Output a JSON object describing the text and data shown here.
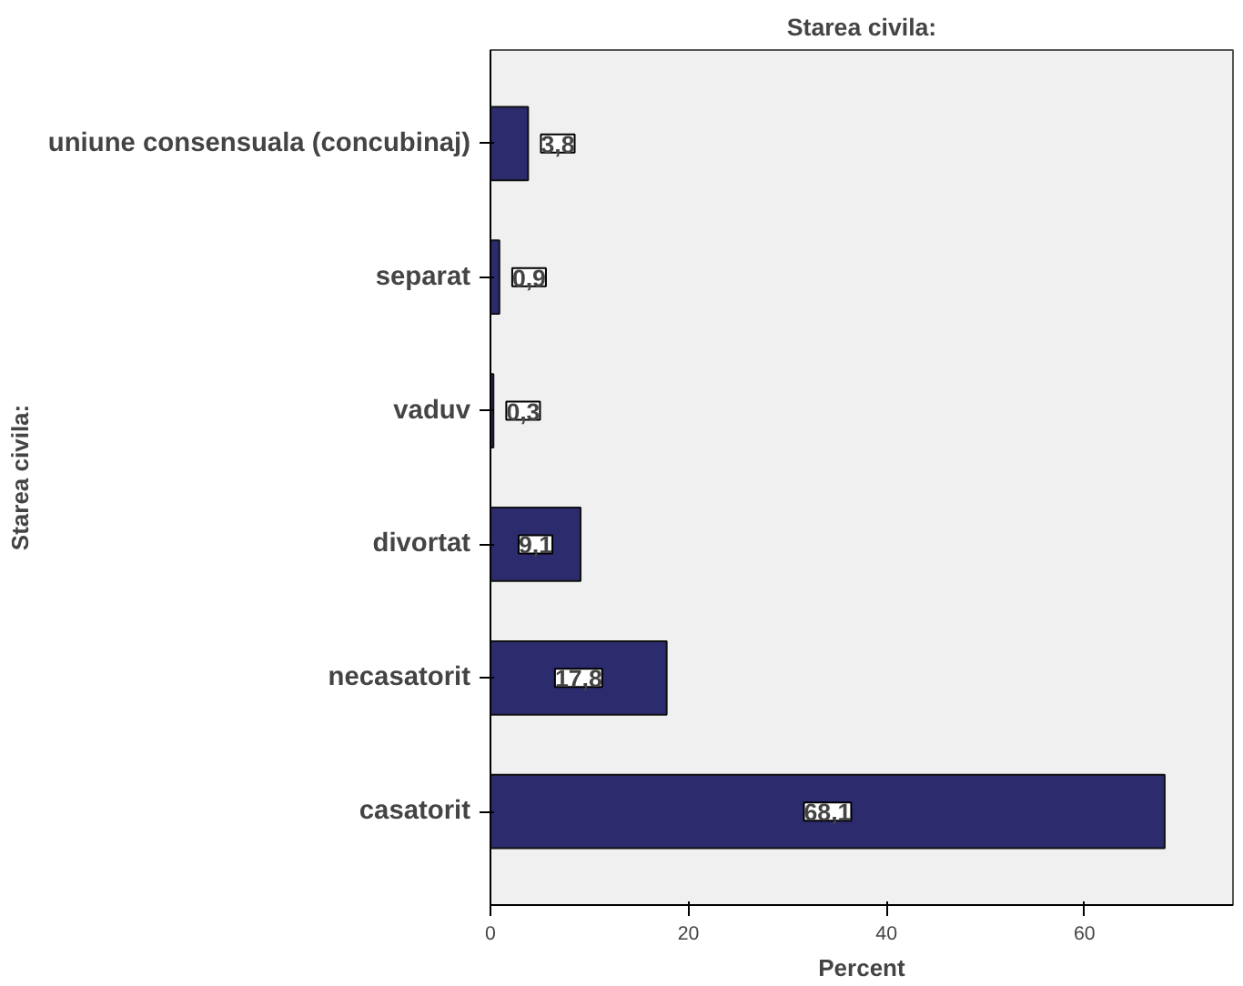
{
  "chart_data": {
    "type": "bar",
    "orientation": "horizontal",
    "title": "Starea civila:",
    "xlabel": "Percent",
    "ylabel": "Starea civila:",
    "categories": [
      "uniune consensuala (concubinaj)",
      "separat",
      "vaduv",
      "divortat",
      "necasatorit",
      "casatorit"
    ],
    "values": [
      3.8,
      0.9,
      0.3,
      9.1,
      17.8,
      68.1
    ],
    "value_labels": [
      "3,8",
      "0,9",
      "0,3",
      "9,1",
      "17,8",
      "68,1"
    ],
    "color": "#2b2b6e",
    "xlim": [
      0,
      75
    ],
    "xticks": [
      0,
      20,
      40,
      60
    ],
    "grid": false
  }
}
